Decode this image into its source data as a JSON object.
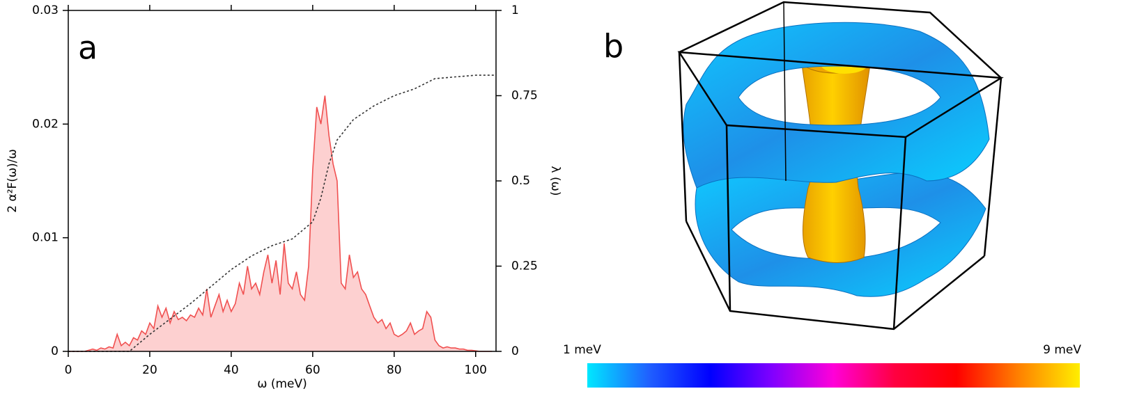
{
  "chart_data": {
    "type": "line",
    "panel_label": "a",
    "xlabel": "ω (meV)",
    "ylabel": "2 α²F(ω)/ω",
    "y2label": "λ (ω)",
    "xlim": [
      0,
      105
    ],
    "xticks": [
      0,
      20,
      40,
      60,
      80,
      100
    ],
    "ylim": [
      0,
      0.03
    ],
    "yticks": [
      0,
      0.01,
      0.02,
      0.03
    ],
    "y2lim": [
      0,
      1
    ],
    "y2ticks": [
      0,
      0.25,
      0.5,
      0.75,
      1
    ],
    "x": [
      0,
      1,
      2,
      3,
      4,
      5,
      6,
      7,
      8,
      9,
      10,
      11,
      12,
      13,
      14,
      15,
      16,
      17,
      18,
      19,
      20,
      21,
      22,
      23,
      24,
      25,
      26,
      27,
      28,
      29,
      30,
      31,
      32,
      33,
      34,
      35,
      36,
      37,
      38,
      39,
      40,
      41,
      42,
      43,
      44,
      45,
      46,
      47,
      48,
      49,
      50,
      51,
      52,
      53,
      54,
      55,
      56,
      57,
      58,
      59,
      60,
      61,
      62,
      63,
      64,
      65,
      66,
      67,
      68,
      69,
      70,
      71,
      72,
      73,
      74,
      75,
      76,
      77,
      78,
      79,
      80,
      81,
      82,
      83,
      84,
      85,
      86,
      87,
      88,
      89,
      90,
      91,
      92,
      93,
      94,
      95,
      96,
      97,
      98,
      99,
      100,
      101,
      102,
      103,
      104
    ],
    "series": [
      {
        "color": "#f05050",
        "fill": "#fdd0d0",
        "values": [
          0,
          0,
          0,
          0,
          0,
          0.0001,
          0.0002,
          0.0001,
          0.0003,
          0.0002,
          0.0004,
          0.0003,
          0.0015,
          0.0005,
          0.0008,
          0.0005,
          0.0012,
          0.001,
          0.0018,
          0.0015,
          0.0025,
          0.002,
          0.004,
          0.003,
          0.0038,
          0.0025,
          0.0035,
          0.0028,
          0.003,
          0.0027,
          0.0032,
          0.003,
          0.0038,
          0.0032,
          0.0055,
          0.003,
          0.004,
          0.005,
          0.0035,
          0.0045,
          0.0035,
          0.0042,
          0.006,
          0.005,
          0.0075,
          0.0055,
          0.006,
          0.005,
          0.007,
          0.0085,
          0.006,
          0.008,
          0.005,
          0.0095,
          0.006,
          0.0055,
          0.007,
          0.005,
          0.0045,
          0.0075,
          0.016,
          0.0215,
          0.02,
          0.0225,
          0.019,
          0.0165,
          0.015,
          0.006,
          0.0055,
          0.0085,
          0.0065,
          0.007,
          0.0055,
          0.005,
          0.004,
          0.003,
          0.0025,
          0.0028,
          0.002,
          0.0025,
          0.0015,
          0.0013,
          0.0015,
          0.0018,
          0.0025,
          0.0015,
          0.0018,
          0.002,
          0.0035,
          0.003,
          0.001,
          0.0005,
          0.0003,
          0.0004,
          0.0003,
          0.0003,
          0.0002,
          0.0002,
          0.0001,
          0.0001,
          5e-05,
          0,
          0,
          0,
          0
        ]
      },
      {
        "color": "#333333",
        "axis": "y2",
        "dashed": true,
        "x": [
          0,
          15,
          16,
          20,
          30,
          40,
          45,
          50,
          55,
          60,
          62,
          64,
          66,
          70,
          75,
          80,
          85,
          90,
          95,
          100,
          105
        ],
        "values": [
          0,
          0,
          0.01,
          0.05,
          0.14,
          0.24,
          0.28,
          0.31,
          0.33,
          0.38,
          0.45,
          0.55,
          0.62,
          0.68,
          0.72,
          0.75,
          0.77,
          0.8,
          0.805,
          0.81,
          0.81
        ]
      }
    ]
  },
  "figure_b": {
    "panel_label": "b",
    "colorbar": {
      "min_label": "1 meV",
      "max_label": "9 meV",
      "colors": [
        "#00e8ff",
        "#2060ff",
        "#0000ff",
        "#8000ff",
        "#ff00d8",
        "#ff0040",
        "#ff0000",
        "#ff8000",
        "#ffee00"
      ]
    }
  }
}
